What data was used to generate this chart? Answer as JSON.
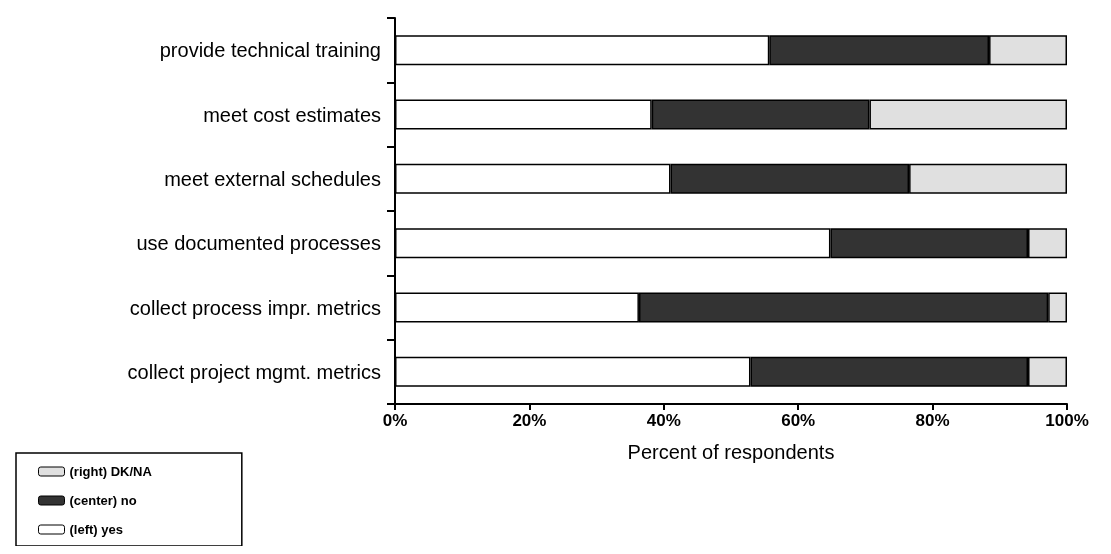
{
  "chart_data": {
    "type": "bar",
    "orientation": "horizontal",
    "stacked": true,
    "xlabel": "Percent of respondents",
    "categories": [
      "provide technical training",
      "meet cost estimates",
      "meet external schedules",
      "use documented processes",
      "collect process impr. metrics",
      "collect project mgmt. metrics"
    ],
    "series": [
      {
        "name": "(left) yes",
        "color": "#ffffff",
        "values": [
          55.7,
          38.2,
          41.0,
          64.8,
          36.3,
          52.9
        ]
      },
      {
        "name": "(center) no",
        "color": "#333333",
        "values": [
          32.7,
          32.4,
          35.5,
          29.4,
          60.9,
          41.3
        ]
      },
      {
        "name": "(right) DK/NA",
        "color": "#e0e0e0",
        "values": [
          11.6,
          29.4,
          23.5,
          5.8,
          2.8,
          5.8
        ]
      }
    ],
    "xlim": [
      0,
      100
    ],
    "xticks": [
      {
        "value": 0,
        "label": "0%"
      },
      {
        "value": 20,
        "label": "20%"
      },
      {
        "value": 40,
        "label": "40%"
      },
      {
        "value": 60,
        "label": "60%"
      },
      {
        "value": 80,
        "label": "80%"
      },
      {
        "value": 100,
        "label": "100%"
      }
    ],
    "legend": "bottom left",
    "grid": false
  }
}
